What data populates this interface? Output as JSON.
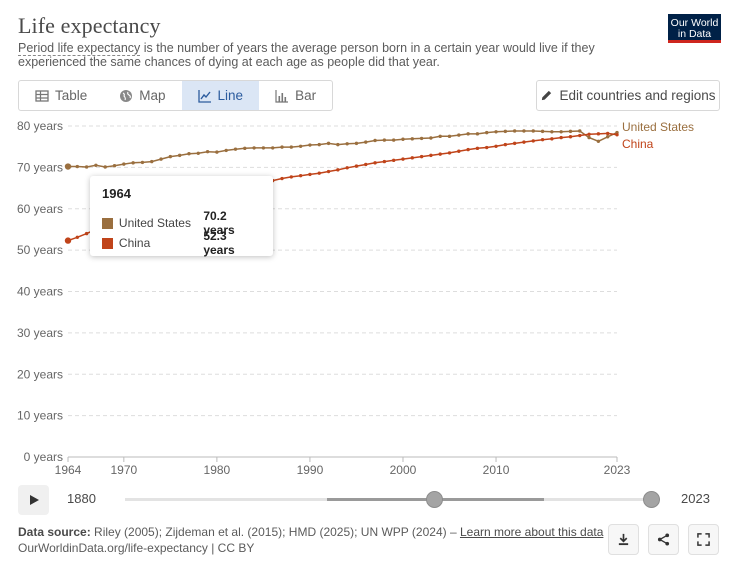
{
  "header": {
    "title": "Life expectancy",
    "subtitle_term": "Period life expectancy",
    "subtitle_rest": " is the number of years the average person born in a certain year would live if they experienced the same chances of dying at each age as people did that year.",
    "logo_line1": "Our World",
    "logo_line2": "in Data"
  },
  "tabs": [
    {
      "label": "Table",
      "icon": "table-icon",
      "active": false
    },
    {
      "label": "Map",
      "icon": "globe-icon",
      "active": false
    },
    {
      "label": "Line",
      "icon": "line-chart-icon",
      "active": true
    },
    {
      "label": "Bar",
      "icon": "bar-chart-icon",
      "active": false
    }
  ],
  "edit_button": {
    "label": "Edit countries and regions",
    "icon": "pencil-icon"
  },
  "chart_data": {
    "type": "line",
    "xlabel": "",
    "ylabel": "",
    "xlim": [
      1964,
      2023
    ],
    "ylim": [
      0,
      80
    ],
    "y_ticks": [
      "0 years",
      "10 years",
      "20 years",
      "30 years",
      "40 years",
      "50 years",
      "60 years",
      "70 years",
      "80 years"
    ],
    "x_ticks": [
      "1964",
      "1970",
      "1980",
      "1990",
      "2000",
      "2010",
      "2023"
    ],
    "grid": true,
    "series": [
      {
        "name": "United States",
        "color": "#9a6f3f",
        "x": [
          1964,
          1965,
          1966,
          1967,
          1968,
          1969,
          1970,
          1971,
          1972,
          1973,
          1974,
          1975,
          1976,
          1977,
          1978,
          1979,
          1980,
          1981,
          1982,
          1983,
          1984,
          1985,
          1986,
          1987,
          1988,
          1989,
          1990,
          1991,
          1992,
          1993,
          1994,
          1995,
          1996,
          1997,
          1998,
          1999,
          2000,
          2001,
          2002,
          2003,
          2004,
          2005,
          2006,
          2007,
          2008,
          2009,
          2010,
          2011,
          2012,
          2013,
          2014,
          2015,
          2016,
          2017,
          2018,
          2019,
          2020,
          2021,
          2022,
          2023
        ],
        "values": [
          70.2,
          70.2,
          70.1,
          70.5,
          70.1,
          70.4,
          70.8,
          71.1,
          71.2,
          71.4,
          72.0,
          72.6,
          72.9,
          73.3,
          73.4,
          73.8,
          73.7,
          74.1,
          74.4,
          74.6,
          74.7,
          74.7,
          74.7,
          74.9,
          74.9,
          75.1,
          75.4,
          75.5,
          75.8,
          75.5,
          75.7,
          75.8,
          76.1,
          76.5,
          76.6,
          76.6,
          76.8,
          76.9,
          77.0,
          77.1,
          77.5,
          77.5,
          77.8,
          78.1,
          78.1,
          78.4,
          78.6,
          78.7,
          78.8,
          78.8,
          78.8,
          78.7,
          78.6,
          78.6,
          78.7,
          78.8,
          77.2,
          76.3,
          77.4,
          78.4
        ]
      },
      {
        "name": "China",
        "color": "#c0441a",
        "x": [
          1964,
          1965,
          1966,
          1967,
          1968,
          1969,
          1970,
          1971,
          1972,
          1973,
          1974,
          1975,
          1976,
          1977,
          1978,
          1979,
          1980,
          1981,
          1982,
          1983,
          1984,
          1985,
          1986,
          1987,
          1988,
          1989,
          1990,
          1991,
          1992,
          1993,
          1994,
          1995,
          1996,
          1997,
          1998,
          1999,
          2000,
          2001,
          2002,
          2003,
          2004,
          2005,
          2006,
          2007,
          2008,
          2009,
          2010,
          2011,
          2012,
          2013,
          2014,
          2015,
          2016,
          2017,
          2018,
          2019,
          2020,
          2021,
          2022,
          2023
        ],
        "values": [
          52.3,
          53.1,
          54.0,
          55.0,
          56.0,
          57.0,
          58.1,
          59.1,
          59.9,
          60.7,
          61.4,
          62.1,
          62.6,
          63.2,
          63.7,
          64.2,
          64.6,
          65.0,
          65.4,
          65.7,
          66.1,
          66.4,
          66.8,
          67.3,
          67.7,
          68.0,
          68.3,
          68.6,
          69.0,
          69.4,
          69.9,
          70.3,
          70.7,
          71.1,
          71.4,
          71.7,
          72.0,
          72.3,
          72.6,
          72.9,
          73.2,
          73.5,
          73.9,
          74.3,
          74.6,
          74.8,
          75.1,
          75.5,
          75.8,
          76.1,
          76.4,
          76.7,
          76.9,
          77.2,
          77.4,
          77.7,
          78.0,
          78.1,
          78.2,
          77.9
        ]
      }
    ]
  },
  "tooltip": {
    "year": "1964",
    "rows": [
      {
        "name": "United States",
        "value": "70.2 years",
        "color": "#9a6f3f"
      },
      {
        "name": "China",
        "value": "52.3 years",
        "color": "#c0441a"
      }
    ]
  },
  "timeline": {
    "start_label": "1880",
    "end_label": "2023",
    "play_icon": "play-icon"
  },
  "footer": {
    "source_label": "Data source:",
    "source_text": " Riley (2005); Zijdeman et al. (2015); HMD (2025); UN WPP (2024) – ",
    "learn_more": "Learn more about this data",
    "url_line": "OurWorldinData.org/life-expectancy | CC BY"
  },
  "actions": [
    {
      "icon": "download-icon"
    },
    {
      "icon": "share-icon"
    },
    {
      "icon": "fullscreen-icon"
    }
  ]
}
